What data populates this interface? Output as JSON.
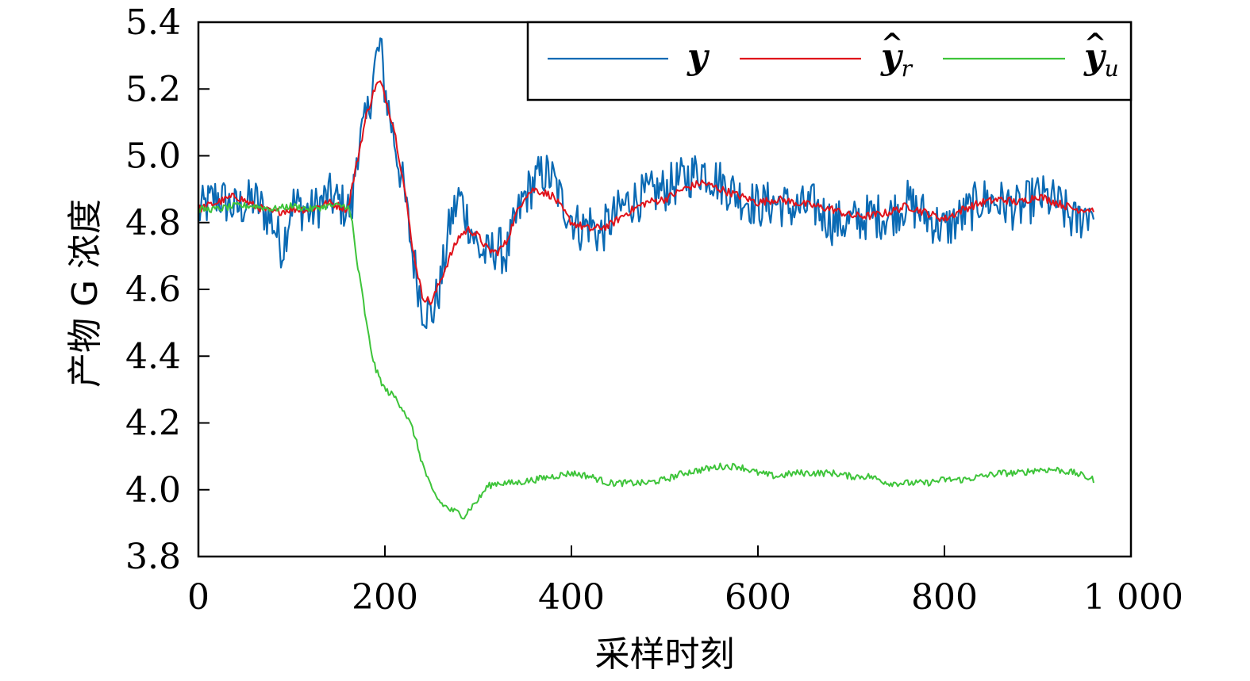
{
  "chart_data": {
    "type": "line",
    "title": "",
    "xlabel": "采样时刻",
    "ylabel": "产物 G 浓度",
    "xlim": [
      0,
      1000
    ],
    "ylim": [
      3.8,
      5.4
    ],
    "x_ticks": [
      0,
      200,
      400,
      600,
      800,
      1000
    ],
    "x_tick_labels": [
      "0",
      "200",
      "400",
      "600",
      "800",
      "1 000"
    ],
    "y_ticks": [
      3.8,
      4.0,
      4.2,
      4.4,
      4.6,
      4.8,
      5.0,
      5.2,
      5.4
    ],
    "y_tick_labels": [
      "3.8",
      "4.0",
      "4.2",
      "4.4",
      "4.6",
      "4.8",
      "5.0",
      "5.2",
      "5.4"
    ],
    "grid": false,
    "legend_position": "top-right",
    "series": [
      {
        "name": "y",
        "legend_main": "y",
        "legend_hat": "",
        "legend_sub": "",
        "color": "#0a6ab4",
        "x": [
          0,
          20,
          40,
          60,
          80,
          90,
          100,
          120,
          140,
          160,
          165,
          170,
          180,
          190,
          195,
          200,
          210,
          220,
          230,
          240,
          250,
          260,
          270,
          280,
          290,
          300,
          310,
          320,
          330,
          340,
          350,
          360,
          370,
          380,
          390,
          400,
          410,
          420,
          430,
          440,
          460,
          480,
          500,
          520,
          540,
          560,
          580,
          600,
          620,
          640,
          660,
          680,
          700,
          720,
          740,
          760,
          780,
          800,
          820,
          840,
          860,
          880,
          900,
          920,
          940,
          960
        ],
        "y": [
          4.83,
          4.88,
          4.84,
          4.87,
          4.8,
          4.72,
          4.86,
          4.83,
          4.88,
          4.84,
          4.85,
          5.02,
          5.1,
          5.28,
          5.33,
          5.2,
          5.05,
          4.9,
          4.7,
          4.55,
          4.52,
          4.62,
          4.8,
          4.88,
          4.8,
          4.72,
          4.7,
          4.73,
          4.7,
          4.8,
          4.88,
          4.92,
          4.95,
          4.93,
          4.86,
          4.82,
          4.78,
          4.8,
          4.76,
          4.8,
          4.86,
          4.88,
          4.9,
          4.93,
          4.96,
          4.92,
          4.88,
          4.85,
          4.86,
          4.84,
          4.85,
          4.8,
          4.8,
          4.82,
          4.82,
          4.86,
          4.82,
          4.78,
          4.82,
          4.87,
          4.86,
          4.84,
          4.88,
          4.86,
          4.8,
          4.85
        ]
      },
      {
        "name": "ŷr",
        "legend_main": "y",
        "legend_hat": "^",
        "legend_sub": "r",
        "color": "#e0131b",
        "x": [
          0,
          20,
          40,
          60,
          80,
          100,
          120,
          140,
          160,
          170,
          180,
          190,
          195,
          200,
          210,
          220,
          230,
          240,
          250,
          260,
          270,
          280,
          290,
          300,
          310,
          320,
          330,
          340,
          350,
          360,
          370,
          380,
          390,
          400,
          420,
          440,
          460,
          480,
          500,
          520,
          540,
          560,
          580,
          600,
          620,
          640,
          660,
          680,
          700,
          720,
          740,
          760,
          780,
          800,
          820,
          840,
          860,
          880,
          900,
          920,
          940,
          960
        ],
        "y": [
          4.84,
          4.86,
          4.88,
          4.85,
          4.83,
          4.84,
          4.84,
          4.86,
          4.84,
          4.98,
          5.12,
          5.21,
          5.22,
          5.18,
          5.08,
          4.92,
          4.72,
          4.58,
          4.56,
          4.63,
          4.7,
          4.76,
          4.78,
          4.76,
          4.72,
          4.71,
          4.74,
          4.82,
          4.88,
          4.9,
          4.89,
          4.88,
          4.84,
          4.8,
          4.78,
          4.79,
          4.83,
          4.86,
          4.87,
          4.9,
          4.92,
          4.9,
          4.88,
          4.86,
          4.87,
          4.86,
          4.85,
          4.84,
          4.82,
          4.82,
          4.83,
          4.85,
          4.83,
          4.81,
          4.84,
          4.86,
          4.87,
          4.86,
          4.88,
          4.86,
          4.84,
          4.84
        ]
      },
      {
        "name": "ŷu",
        "legend_main": "y",
        "legend_hat": "^",
        "legend_sub": "u",
        "color": "#3ec43a",
        "x": [
          0,
          20,
          40,
          60,
          80,
          100,
          120,
          140,
          160,
          165,
          170,
          175,
          180,
          185,
          190,
          200,
          210,
          220,
          230,
          240,
          250,
          260,
          270,
          280,
          285,
          290,
          300,
          310,
          320,
          330,
          340,
          360,
          380,
          400,
          420,
          440,
          460,
          480,
          500,
          520,
          540,
          560,
          580,
          600,
          620,
          640,
          660,
          680,
          700,
          720,
          740,
          760,
          780,
          800,
          820,
          840,
          860,
          880,
          900,
          920,
          940,
          960
        ],
        "y": [
          4.84,
          4.84,
          4.85,
          4.85,
          4.84,
          4.85,
          4.84,
          4.85,
          4.85,
          4.8,
          4.68,
          4.6,
          4.5,
          4.42,
          4.36,
          4.3,
          4.28,
          4.24,
          4.18,
          4.08,
          4.0,
          3.96,
          3.94,
          3.93,
          3.92,
          3.94,
          3.97,
          4.01,
          4.02,
          4.02,
          4.02,
          4.03,
          4.04,
          4.05,
          4.04,
          4.02,
          4.02,
          4.02,
          4.03,
          4.05,
          4.06,
          4.07,
          4.07,
          4.05,
          4.04,
          4.05,
          4.05,
          4.05,
          4.04,
          4.04,
          4.02,
          4.02,
          4.02,
          4.03,
          4.03,
          4.04,
          4.05,
          4.05,
          4.06,
          4.06,
          4.05,
          4.03
        ]
      }
    ]
  }
}
